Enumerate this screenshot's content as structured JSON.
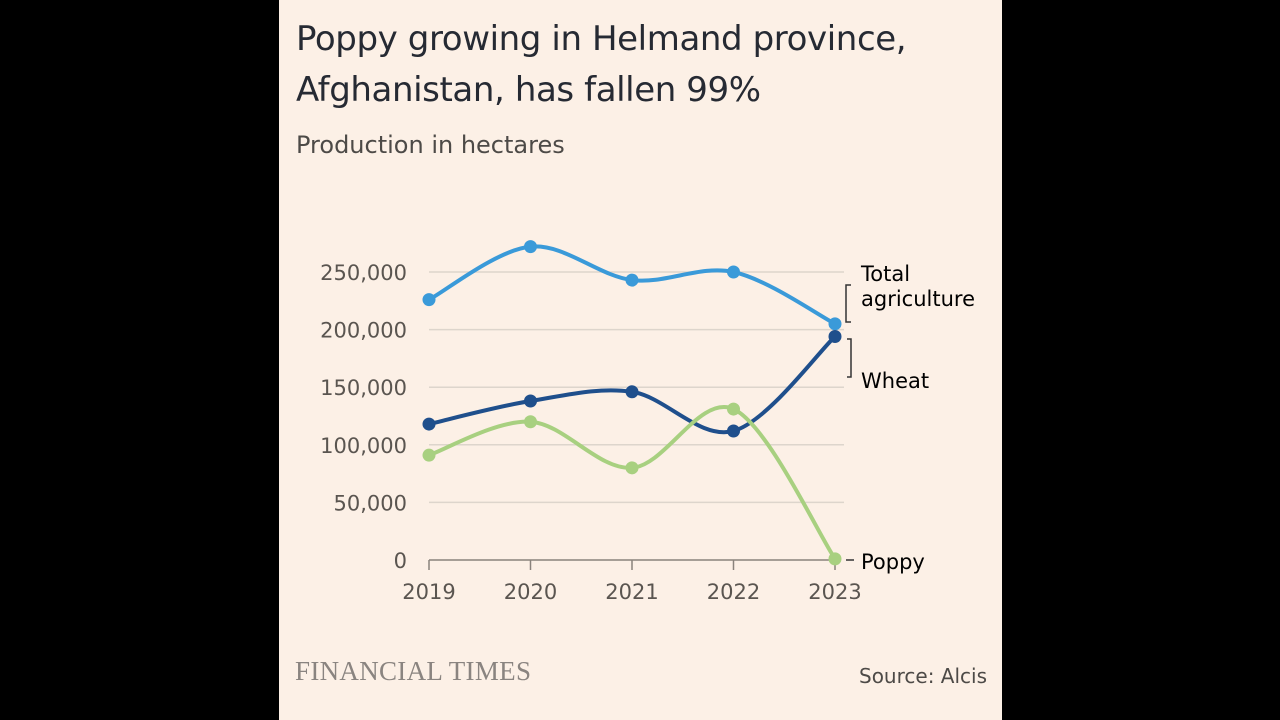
{
  "chart_data": {
    "type": "line",
    "title": "Poppy growing in Helmand province, Afghanistan, has fallen 99%",
    "subtitle": "Production in hectares",
    "x": [
      "2019",
      "2020",
      "2021",
      "2022",
      "2023"
    ],
    "ylim": [
      0,
      250000
    ],
    "yticks": [
      0,
      50000,
      100000,
      150000,
      200000,
      250000
    ],
    "ytick_labels": [
      "0",
      "50,000",
      "100,000",
      "150,000",
      "200,000",
      "250,000"
    ],
    "grid": true,
    "legend": "direct labels at right",
    "series": [
      {
        "name": "Total agriculture",
        "color": "#3a9ad9",
        "values": [
          226000,
          272000,
          243000,
          250000,
          205000
        ]
      },
      {
        "name": "Wheat",
        "color": "#1f4f8c",
        "values": [
          118000,
          138000,
          146000,
          112000,
          194000
        ]
      },
      {
        "name": "Poppy",
        "color": "#a8d080",
        "values": [
          91000,
          120000,
          80000,
          131000,
          1000
        ]
      }
    ],
    "series_label_lines": {
      "total_line1": "Total",
      "total_line2": "agriculture",
      "wheat": "Wheat",
      "poppy": "Poppy"
    }
  },
  "footer": {
    "brand": "FINANCIAL TIMES",
    "source": "Source: Alcis"
  }
}
